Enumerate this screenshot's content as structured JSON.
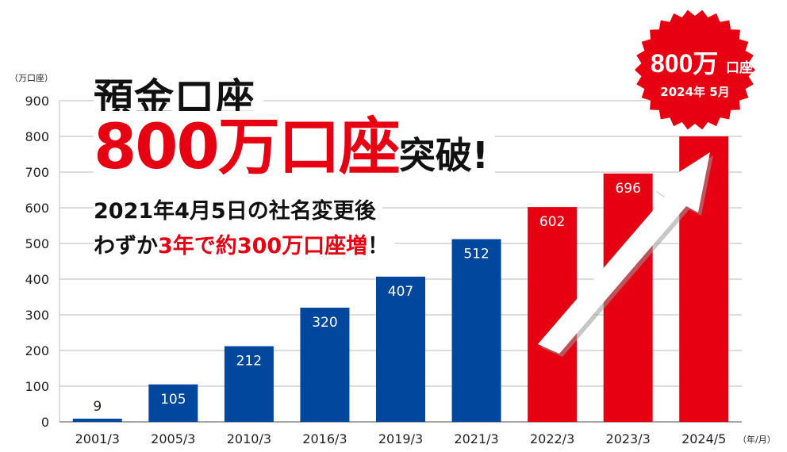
{
  "chart_data": {
    "type": "bar",
    "categories": [
      "2001/3",
      "2005/3",
      "2010/3",
      "2016/3",
      "2019/3",
      "2021/3",
      "2022/3",
      "2023/3",
      "2024/5"
    ],
    "values": [
      9,
      105,
      212,
      320,
      407,
      512,
      602,
      696,
      800
    ],
    "data_labels": [
      "9",
      "105",
      "212",
      "320",
      "407",
      "512",
      "602",
      "696",
      ""
    ],
    "ylabel": "（万口座）",
    "xlabel": "（年/月）",
    "ylim": [
      0,
      900
    ],
    "yticks": [
      0,
      100,
      200,
      300,
      400,
      500,
      600,
      700,
      800,
      900
    ],
    "grid": true,
    "colors": {
      "before": "#00479d",
      "after": "#e60012",
      "arrow": "#ffffff"
    },
    "highlight_from_index": 6
  },
  "headline": {
    "line1": "預金口座",
    "line2_main": "800万口座",
    "line2_suffix": "突破!",
    "line3": "2021年4月5日の社名変更後",
    "line4_pre": "わずか",
    "line4_red": "3年で約300万口座増",
    "line4_post": "！"
  },
  "badge": {
    "main_number": "800万",
    "main_unit": "口座",
    "date": "2024年 5月",
    "color": "#e60012"
  }
}
